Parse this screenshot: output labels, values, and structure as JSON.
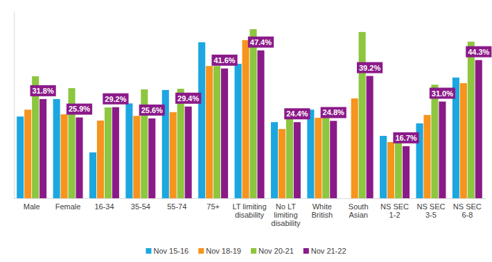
{
  "chart_data": {
    "type": "bar",
    "categories": [
      "Male",
      "Female",
      "16-34",
      "35-54",
      "55-74",
      "75+",
      "LT limiting disability",
      "No LT limiting disability",
      "White British",
      "South Asian",
      "NS SEC 1-2",
      "NS SEC 3-5",
      "NS SEC 6-8"
    ],
    "series": [
      {
        "name": "Nov 15-16",
        "color": "#1ca7e0",
        "values": [
          26.2,
          31.8,
          14.7,
          30.4,
          34.7,
          50.0,
          43.1,
          24.4,
          28.4,
          null,
          20.0,
          24.0,
          38.7
        ]
      },
      {
        "name": "Nov 18-19",
        "color": "#f7941d",
        "values": [
          28.4,
          26.9,
          24.9,
          26.4,
          27.6,
          42.4,
          50.7,
          22.2,
          25.8,
          32.0,
          18.0,
          26.7,
          36.9
        ]
      },
      {
        "name": "Nov 20-21",
        "color": "#8dc63f",
        "values": [
          39.1,
          35.3,
          29.1,
          34.9,
          35.1,
          42.4,
          54.2,
          25.8,
          26.9,
          53.3,
          18.0,
          36.4,
          50.2
        ]
      },
      {
        "name": "Nov 21-22",
        "color": "#8b1a89",
        "data_labels": true,
        "values": [
          31.8,
          25.9,
          29.2,
          25.6,
          29.4,
          41.6,
          47.4,
          24.4,
          24.8,
          39.2,
          16.7,
          31.0,
          44.3
        ],
        "value_labels": [
          "31.8%",
          "25.9%",
          "29.2%",
          "25.6%",
          "29.4%",
          "41.6%",
          "47.4%",
          "24.4%",
          "24.8%",
          "39.2%",
          "16.7%",
          "31.0%",
          "44.3%"
        ]
      }
    ],
    "ylim": [
      0,
      60
    ],
    "yticks": [],
    "grid": false,
    "tick_labels": "x",
    "legend": "bottom"
  }
}
